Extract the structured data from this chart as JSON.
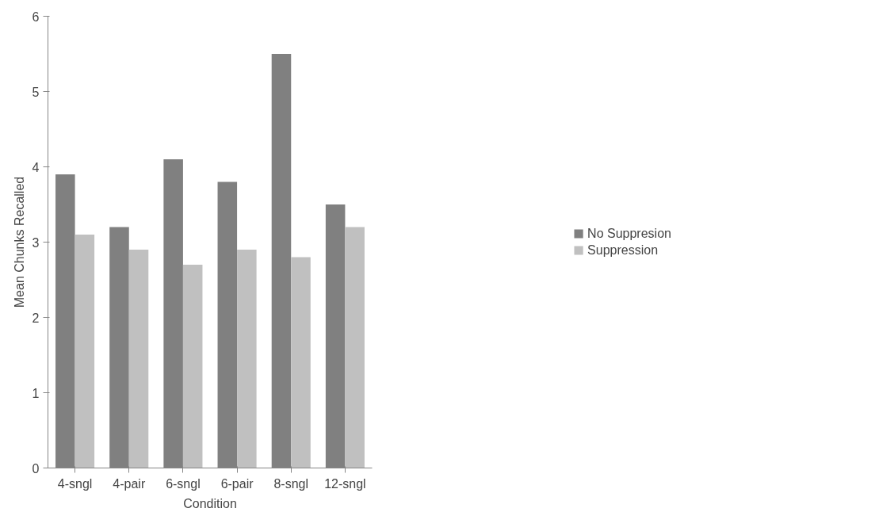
{
  "chart_data": {
    "type": "bar",
    "xlabel": "Condition",
    "ylabel": "Mean Chunks Recalled",
    "categories": [
      "4-sngl",
      "4-pair",
      "6-sngl",
      "6-pair",
      "8-sngl",
      "12-sngl"
    ],
    "series": [
      {
        "name": "No Suppresion",
        "color": "#808080",
        "values": [
          3.9,
          3.2,
          4.1,
          3.8,
          5.5,
          3.5
        ]
      },
      {
        "name": "Suppression",
        "color": "#c0c0c0",
        "values": [
          3.1,
          2.9,
          2.7,
          2.9,
          2.8,
          3.2
        ]
      }
    ],
    "ylim": [
      0,
      6
    ],
    "yticks": [
      0,
      1,
      2,
      3,
      4,
      5,
      6
    ],
    "grid": false,
    "legend": "right"
  }
}
